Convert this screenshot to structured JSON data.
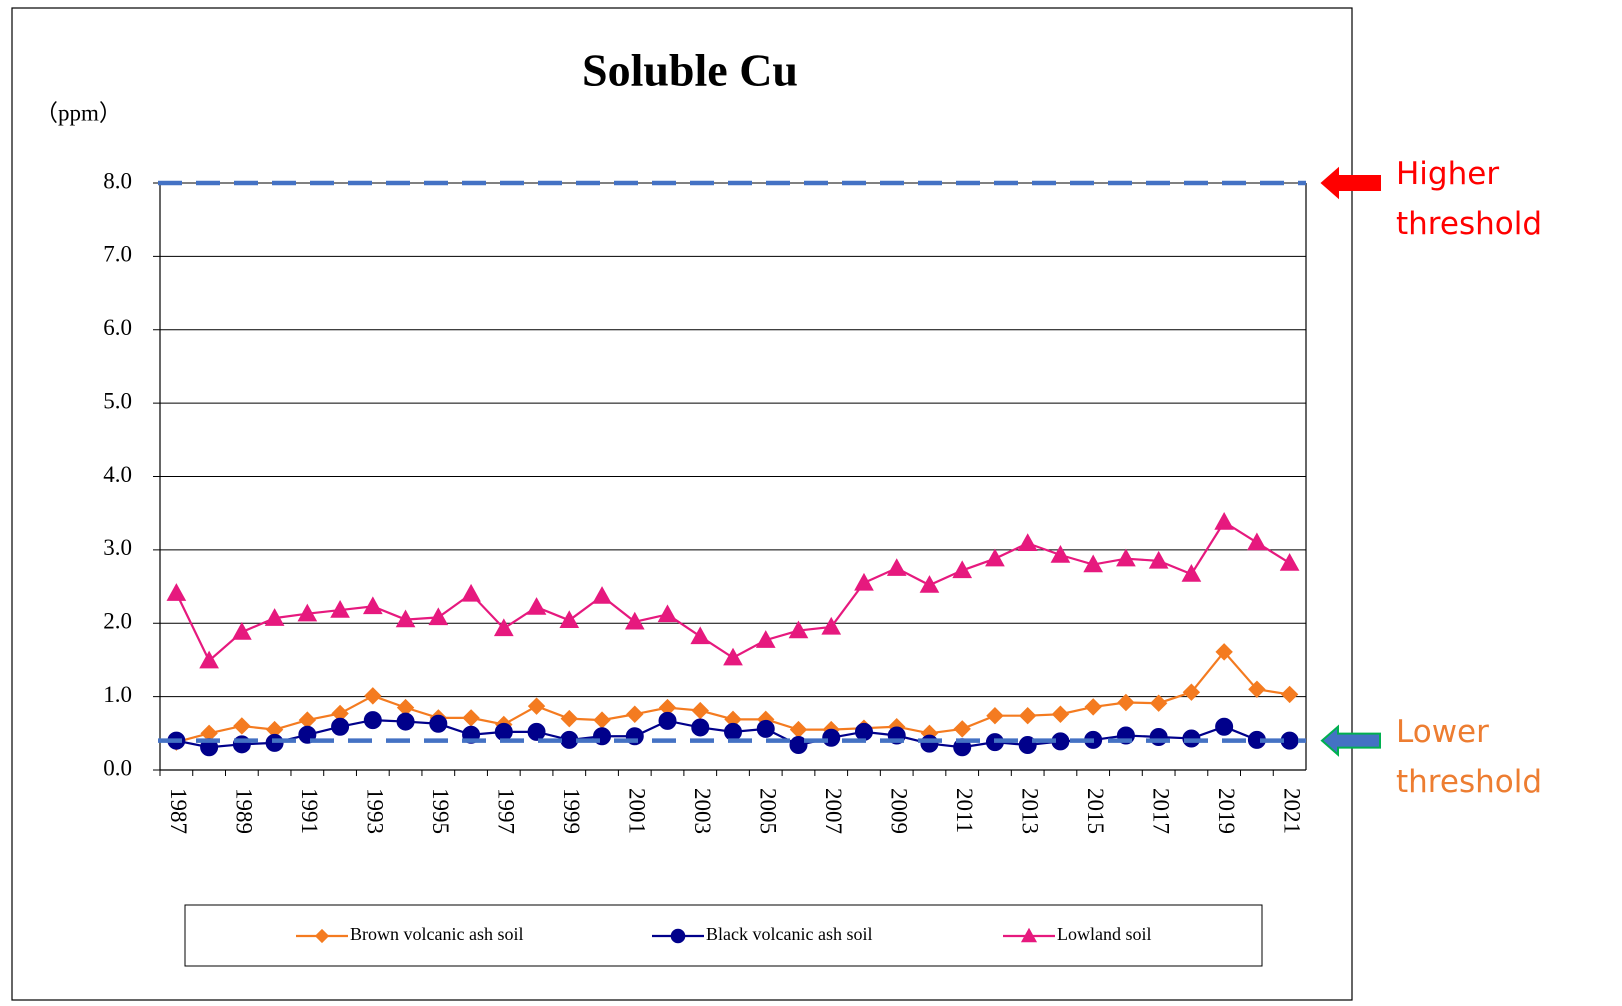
{
  "chart_data": {
    "type": "line",
    "title": "Soluble Cu",
    "y_label": "（ppm）",
    "categories": [
      "1987",
      null,
      "1989",
      null,
      "1991",
      null,
      "1993",
      null,
      "1995",
      null,
      "1997",
      null,
      "1999",
      null,
      "2001",
      null,
      "2003",
      null,
      "2005",
      null,
      "2007",
      null,
      "2009",
      null,
      "2011",
      null,
      "2013",
      null,
      "2015",
      null,
      "2017",
      null,
      "2019",
      null,
      "2021"
    ],
    "series": [
      {
        "name": "Brown volcanic ash soil",
        "color": "#f47b20",
        "marker": "diamond",
        "values": [
          0.38,
          0.5,
          0.6,
          0.55,
          0.68,
          0.77,
          1.01,
          0.85,
          0.71,
          0.71,
          0.62,
          0.87,
          0.7,
          0.68,
          0.76,
          0.85,
          0.81,
          0.69,
          0.69,
          0.55,
          0.55,
          0.57,
          0.59,
          0.5,
          0.56,
          0.74,
          0.74,
          0.76,
          0.86,
          0.92,
          0.91,
          1.06,
          1.61,
          1.1,
          1.03
        ]
      },
      {
        "name": "Black volcanic ash soil",
        "color": "#00008b",
        "marker": "circle",
        "values": [
          0.4,
          0.31,
          0.35,
          0.37,
          0.48,
          0.59,
          0.68,
          0.66,
          0.63,
          0.48,
          0.52,
          0.52,
          0.41,
          0.46,
          0.46,
          0.67,
          0.58,
          0.52,
          0.56,
          0.34,
          0.44,
          0.52,
          0.47,
          0.36,
          0.31,
          0.38,
          0.34,
          0.39,
          0.41,
          0.47,
          0.45,
          0.43,
          0.59,
          0.41,
          0.4
        ]
      },
      {
        "name": "Lowland soil",
        "color": "#e6197e",
        "marker": "triangle",
        "values": [
          2.41,
          1.49,
          1.88,
          2.07,
          2.13,
          2.18,
          2.23,
          2.05,
          2.08,
          2.4,
          1.93,
          2.22,
          2.04,
          2.37,
          2.02,
          2.12,
          1.82,
          1.53,
          1.77,
          1.9,
          1.95,
          2.55,
          2.75,
          2.52,
          2.72,
          2.88,
          3.09,
          2.93,
          2.8,
          2.88,
          2.85,
          2.67,
          3.38,
          3.1,
          2.82
        ]
      }
    ],
    "ylim": [
      0,
      8
    ],
    "yticks": [
      {
        "value": 0,
        "label": "0.0"
      },
      {
        "value": 1,
        "label": "1.0"
      },
      {
        "value": 2,
        "label": "2.0"
      },
      {
        "value": 3,
        "label": "3.0"
      },
      {
        "value": 4,
        "label": "4.0"
      },
      {
        "value": 5,
        "label": "5.0"
      },
      {
        "value": 6,
        "label": "6.0"
      },
      {
        "value": 7,
        "label": "7.0"
      },
      {
        "value": 8,
        "label": "8.0"
      }
    ],
    "grid": true,
    "legend": "bottom",
    "threshold_line_color": "#4472c4",
    "thresholds": [
      {
        "label": "Higher threshold",
        "value": 8,
        "color": "#ff0000",
        "arrow_color": "#ff0000",
        "arrow_outline": "#ff0000"
      },
      {
        "label": "Lower threshold",
        "value": 0.4,
        "color": "#ed7d31",
        "arrow_color": "#4472c4",
        "arrow_outline": "#00b050"
      }
    ]
  }
}
